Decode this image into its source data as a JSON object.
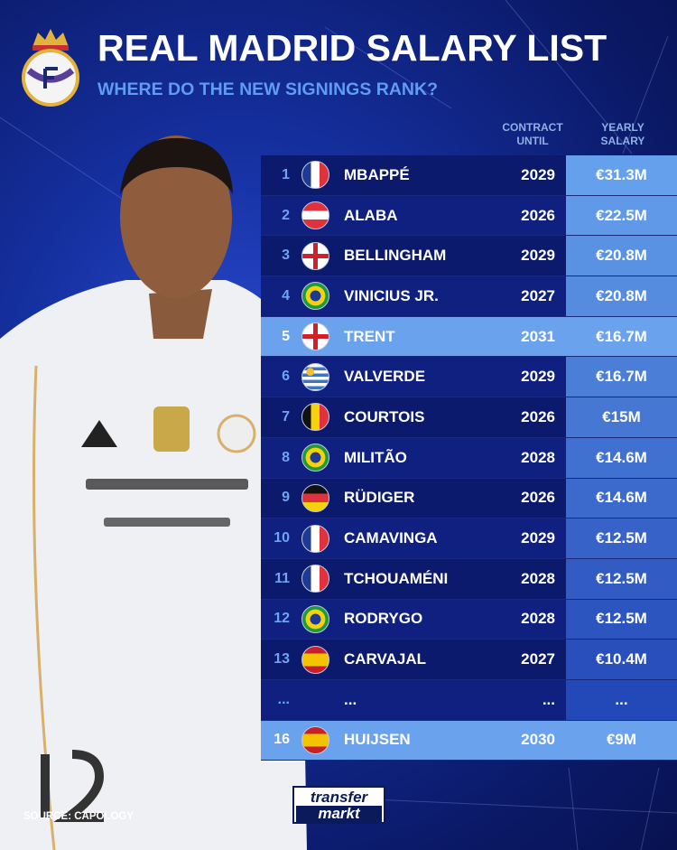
{
  "title": "REAL MADRID SALARY LIST",
  "subtitle": "WHERE DO THE NEW SIGNINGS RANK?",
  "columns": {
    "contract": "CONTRACT\nUNTIL",
    "salary": "YEARLY\nSALARY",
    "contract_l1": "CONTRACT",
    "contract_l2": "UNTIL",
    "salary_l1": "YEARLY",
    "salary_l2": "SALARY"
  },
  "rows": [
    {
      "rank": "1",
      "flag": "france-flag-icon",
      "name": "MBAPPÉ",
      "until": "2029",
      "salary": "€31.3M"
    },
    {
      "rank": "2",
      "flag": "austria-flag-icon",
      "name": "ALABA",
      "until": "2026",
      "salary": "€22.5M"
    },
    {
      "rank": "3",
      "flag": "england-flag-icon",
      "name": "BELLINGHAM",
      "until": "2029",
      "salary": "€20.8M"
    },
    {
      "rank": "4",
      "flag": "brazil-flag-icon",
      "name": "VINICIUS JR.",
      "until": "2027",
      "salary": "€20.8M"
    },
    {
      "rank": "5",
      "flag": "england-flag-icon",
      "name": "TRENT",
      "until": "2031",
      "salary": "€16.7M",
      "highlight": true
    },
    {
      "rank": "6",
      "flag": "uruguay-flag-icon",
      "name": "VALVERDE",
      "until": "2029",
      "salary": "€16.7M"
    },
    {
      "rank": "7",
      "flag": "belgium-flag-icon",
      "name": "COURTOIS",
      "until": "2026",
      "salary": "€15M"
    },
    {
      "rank": "8",
      "flag": "brazil-flag-icon",
      "name": "MILITÃO",
      "until": "2028",
      "salary": "€14.6M"
    },
    {
      "rank": "9",
      "flag": "germany-flag-icon",
      "name": "RÜDIGER",
      "until": "2026",
      "salary": "€14.6M"
    },
    {
      "rank": "10",
      "flag": "france-flag-icon",
      "name": "CAMAVINGA",
      "until": "2029",
      "salary": "€12.5M"
    },
    {
      "rank": "11",
      "flag": "france-flag-icon",
      "name": "TCHOUAMÉNI",
      "until": "2028",
      "salary": "€12.5M"
    },
    {
      "rank": "12",
      "flag": "brazil-flag-icon",
      "name": "RODRYGO",
      "until": "2028",
      "salary": "€12.5M"
    },
    {
      "rank": "13",
      "flag": "spain-flag-icon",
      "name": "CARVAJAL",
      "until": "2027",
      "salary": "€10.4M"
    },
    {
      "rank": "...",
      "flag": "",
      "name": "...",
      "until": "...",
      "salary": "..."
    },
    {
      "rank": "16",
      "flag": "spain-flag-icon",
      "name": "HUIJSEN",
      "until": "2030",
      "salary": "€9M",
      "highlight": true
    }
  ],
  "source": "SOURCE: CAPOLOGY",
  "logo": {
    "line1": "transfer",
    "line2": "markt"
  },
  "colors": {
    "row": "#0c1a6e",
    "highlight": "#6aa2ee",
    "accent": "#5f9cf2"
  }
}
